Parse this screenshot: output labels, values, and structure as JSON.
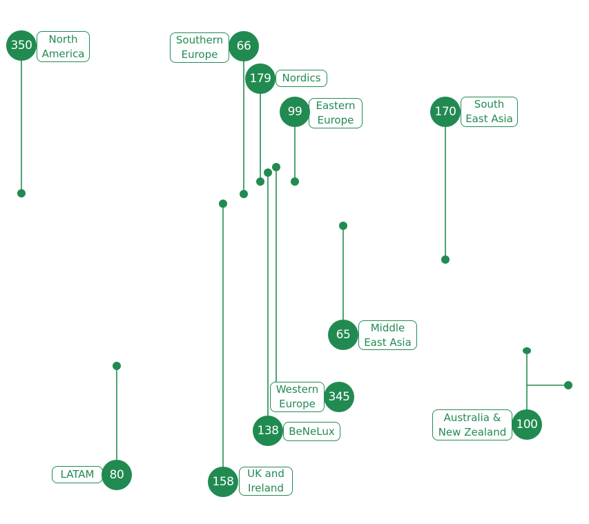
{
  "accent_color": "#218a51",
  "regions": [
    {
      "name": "North America",
      "value": "350"
    },
    {
      "name": "Southern Europe",
      "value": "66"
    },
    {
      "name": "Nordics",
      "value": "179"
    },
    {
      "name": "Eastern Europe",
      "value": "99"
    },
    {
      "name": "South East Asia",
      "value": "170"
    },
    {
      "name": "Middle East Asia",
      "value": "65"
    },
    {
      "name": "Western Europe",
      "value": "345"
    },
    {
      "name": "BeNeLux",
      "value": "138"
    },
    {
      "name": "Australia & New Zealand",
      "value": "100"
    },
    {
      "name": "LATAM",
      "value": "80"
    },
    {
      "name": "UK and Ireland",
      "value": "158"
    }
  ],
  "label_lines": [
    "North\nAmerica",
    "Southern\nEurope",
    "Nordics",
    "Eastern\nEurope",
    "South\nEast Asia",
    "Middle\nEast Asia",
    "Western\nEurope",
    "BeNeLux",
    "Australia &\nNew Zealand",
    "LATAM",
    "UK and\nIreland"
  ]
}
